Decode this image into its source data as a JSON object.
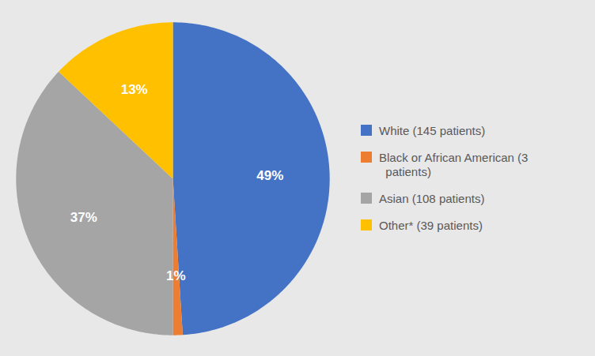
{
  "chart_data": {
    "type": "pie",
    "categories": [
      "White (145 patients)",
      "Black or African American (3\n  patients)",
      "Asian (108 patients)",
      "Other* (39 patients)"
    ],
    "values": [
      49,
      1,
      37,
      13
    ],
    "value_labels": [
      "49%",
      "1%",
      "37%",
      "13%"
    ],
    "colors": [
      "#4472C4",
      "#ED7D31",
      "#A5A5A5",
      "#FFC000"
    ],
    "data_labels": true,
    "legend": "right"
  }
}
